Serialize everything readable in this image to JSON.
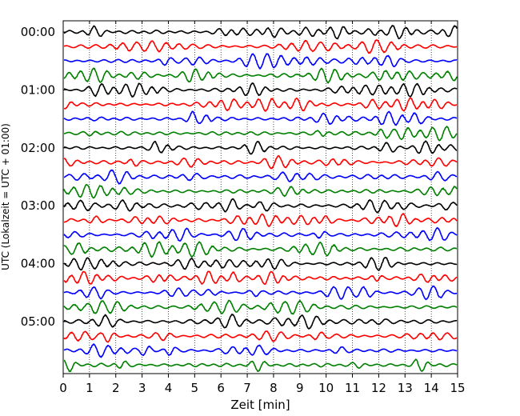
{
  "chart_data": {
    "type": "line",
    "title": "",
    "xlabel": "Zeit  [min]",
    "ylabel": "UTC (Lokalzeit = UTC + 01:00)",
    "xlim": [
      0,
      15
    ],
    "x_ticks": [
      0,
      1,
      2,
      3,
      4,
      5,
      6,
      7,
      8,
      9,
      10,
      11,
      12,
      13,
      14,
      15
    ],
    "x_tick_labels": [
      "0",
      "1",
      "2",
      "3",
      "4",
      "5",
      "6",
      "7",
      "8",
      "9",
      "10",
      "11",
      "12",
      "13",
      "14",
      "15"
    ],
    "y_tick_labels": [
      "00:00",
      "01:00",
      "02:00",
      "03:00",
      "04:00",
      "05:00"
    ],
    "rows_per_hour": 4,
    "row_interval_min": 15,
    "trace_count": 24,
    "trace_colors": [
      "#000000",
      "#ff0000",
      "#0000ff",
      "#008000"
    ],
    "grid": "x-dotted",
    "legend": "none",
    "trace_amplitude_relative": [
      0.62,
      0.6,
      0.68,
      0.66,
      0.62,
      0.6,
      0.66,
      0.64,
      0.6,
      0.58,
      0.64,
      0.62,
      0.6,
      0.6,
      0.62,
      0.7,
      0.6,
      0.62,
      0.6,
      0.62,
      0.66,
      0.66,
      0.6,
      0.6
    ]
  }
}
